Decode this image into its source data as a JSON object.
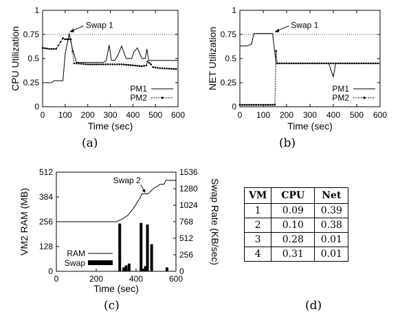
{
  "captions": [
    "(a)",
    "(b)",
    "(c)",
    "(d)"
  ],
  "chart_data": [
    {
      "type": "line",
      "ylabel": "CPU Utilization",
      "xlabel": "Time (sec)",
      "xlim": [
        0,
        600
      ],
      "ylim": [
        0,
        1
      ],
      "xticks": [
        "0",
        "100",
        "200",
        "300",
        "400",
        "500",
        "600"
      ],
      "yticks": [
        "0",
        "0.25",
        "0.5",
        "0.75",
        "1"
      ],
      "threshold": 0.75,
      "annotation": "Swap 1",
      "annotation_point": [
        115,
        0.76
      ],
      "series": [
        {
          "name": "PM1",
          "style": "solid",
          "x": [
            0,
            40,
            50,
            90,
            100,
            118,
            130,
            150,
            200,
            250,
            270,
            282,
            295,
            305,
            320,
            335,
            350,
            370,
            395,
            405,
            420,
            440,
            455,
            462,
            470,
            520,
            600
          ],
          "y": [
            0.25,
            0.25,
            0.27,
            0.27,
            0.55,
            0.76,
            0.62,
            0.46,
            0.46,
            0.46,
            0.46,
            0.48,
            0.64,
            0.48,
            0.48,
            0.54,
            0.63,
            0.5,
            0.5,
            0.57,
            0.61,
            0.5,
            0.5,
            0.6,
            0.48,
            0.48,
            0.48
          ]
        },
        {
          "name": "PM2",
          "style": "dotted-marker",
          "x": [
            0,
            30,
            50,
            60,
            90,
            100,
            125,
            140,
            150,
            200,
            250,
            300,
            350,
            400,
            440,
            460,
            465,
            480,
            490,
            520,
            600
          ],
          "y": [
            0.61,
            0.6,
            0.6,
            0.6,
            0.71,
            0.7,
            0.7,
            0.45,
            0.45,
            0.44,
            0.44,
            0.44,
            0.44,
            0.43,
            0.42,
            0.43,
            0.47,
            0.44,
            0.41,
            0.4,
            0.39
          ]
        }
      ],
      "legend": "bottom-right"
    },
    {
      "type": "line",
      "ylabel": "NET Utilization",
      "xlabel": "Time (sec)",
      "xlim": [
        0,
        600
      ],
      "ylim": [
        0,
        1
      ],
      "xticks": [
        "0",
        "100",
        "200",
        "300",
        "400",
        "500",
        "600"
      ],
      "yticks": [
        "0",
        "0.25",
        "0.5",
        "0.75",
        "1"
      ],
      "threshold": 0.75,
      "annotation": "Swap 1",
      "annotation_point": [
        145,
        0.76
      ],
      "series": [
        {
          "name": "PM1",
          "style": "solid",
          "x": [
            0,
            30,
            50,
            60,
            140,
            155,
            200,
            380,
            390,
            400,
            410,
            600
          ],
          "y": [
            0.63,
            0.63,
            0.65,
            0.76,
            0.76,
            0.45,
            0.45,
            0.45,
            0.38,
            0.31,
            0.45,
            0.45
          ]
        },
        {
          "name": "PM2",
          "style": "dotted-marker",
          "x": [
            0,
            100,
            150,
            155,
            160,
            200,
            300,
            400,
            500,
            600
          ],
          "y": [
            0.02,
            0.02,
            0.02,
            0.58,
            0.45,
            0.45,
            0.45,
            0.45,
            0.45,
            0.45
          ]
        }
      ],
      "legend": "bottom-right"
    },
    {
      "type": "line+bar",
      "ylabel": "VM2 RAM (MB)",
      "y2label": "Swap Rate (KB/sec)",
      "xlabel": "Time (sec)",
      "xlim": [
        0,
        600
      ],
      "ylim": [
        0,
        512
      ],
      "y2lim": [
        0,
        1536
      ],
      "xticks": [
        "0",
        "200",
        "400",
        "600"
      ],
      "yticks": [
        "0",
        "128",
        "256",
        "384",
        "512"
      ],
      "y2ticks": [
        "0",
        "256",
        "512",
        "768",
        "1024",
        "1280",
        "1536"
      ],
      "annotation": "Swap 2",
      "annotation_point": [
        430,
        405
      ],
      "series": [
        {
          "name": "RAM",
          "style": "solid",
          "x": [
            0,
            300,
            330,
            360,
            390,
            420,
            430,
            460,
            470,
            490,
            510,
            520,
            540,
            550,
            580,
            600
          ],
          "y": [
            256,
            256,
            270,
            290,
            330,
            380,
            400,
            400,
            410,
            430,
            440,
            450,
            450,
            470,
            470,
            470
          ]
        },
        {
          "name": "Swap",
          "style": "bar",
          "axis": "right",
          "x": [
            318,
            338,
            350,
            365,
            425,
            437,
            447,
            457,
            478,
            555
          ],
          "y": [
            740,
            60,
            90,
            120,
            750,
            40,
            80,
            725,
            420,
            60
          ]
        }
      ],
      "legend": "bottom-left"
    }
  ],
  "table": {
    "headers": [
      "VM",
      "CPU",
      "Net"
    ],
    "rows": [
      [
        "1",
        "0.09",
        "0.39"
      ],
      [
        "2",
        "0.10",
        "0.38"
      ],
      [
        "3",
        "0.28",
        "0.01"
      ],
      [
        "4",
        "0.31",
        "0.01"
      ]
    ]
  }
}
